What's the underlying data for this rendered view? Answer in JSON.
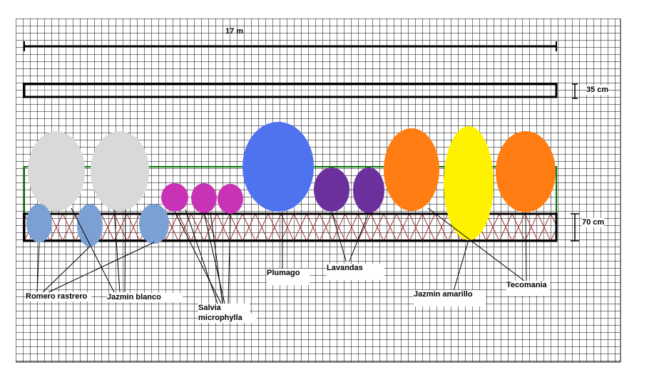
{
  "dimensions": {
    "length_label": "17 m",
    "path_width_label": "35 cm",
    "bed_width_label": "70 cm"
  },
  "labels": {
    "romero": "Romero rastrero",
    "jazmin_blanco": "Jazmin blanco",
    "salvia_line1": "Salvia",
    "salvia_line2": "microphylla",
    "plumago": "Plumago",
    "lavandas": "Lavandas",
    "jazmin_amarillo": "Jazmin amarillo",
    "tecomania": "Tecomania"
  },
  "colors": {
    "grid_line": "#000000",
    "jazmin_blanco": "#d9d9d9",
    "romero_rastrero": "#7ba0d4",
    "salvia": "#c832b4",
    "plumago": "#4f72ef",
    "lavandas": "#6b309c",
    "tecomania": "#ff7d12",
    "jazmin_amarillo": "#fff200",
    "bed_outline_green": "#007300",
    "bed_outline": "#000000",
    "zigzag": "#a03030"
  }
}
